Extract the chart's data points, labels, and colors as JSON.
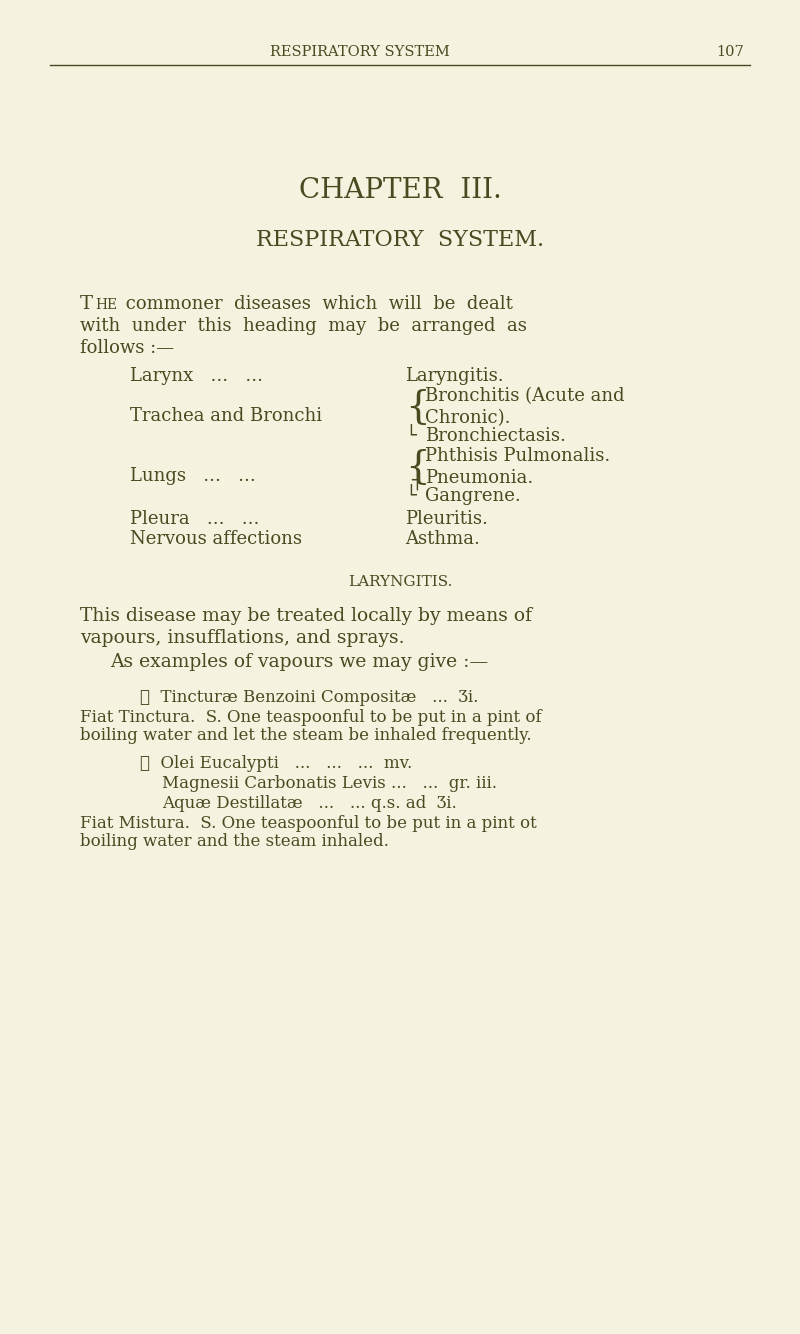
{
  "bg_color": "#f5f2e0",
  "text_color": "#4a4a20",
  "header_text": "RESPIRATORY SYSTEM",
  "header_page": "107",
  "chapter_title": "CHAPTER  III.",
  "chapter_subtitle": "RESPIRATORY  SYSTEM.",
  "laryngitis_header": "LARYNGITIS.",
  "para1_line1": "This disease may be treated locally by means of",
  "para1_line2": "vapours, insufflations, and sprays.",
  "para2": "As examples of vapours we may give :—",
  "rx1_line1": "℞  Tincturæ Benzoini Compositæ   ...  Ʒi.",
  "rx1_line2": "Fiat Tinctura.  S. One teaspoonful to be put in a pint of",
  "rx1_line3": "boiling water and let the steam be inhaled frequently.",
  "rx2_line1": "℞  Olei Eucalypti   ...   ...   ...  mv.",
  "rx2_line2": "Magnesii Carbonatis Levis ...   ...  gr. iii.",
  "rx2_line3": "Aquæ Destillatæ   ...   ... q.s. ad  Ʒi.",
  "rx2_line4": "Fiat Mistura.  S. One teaspoonful to be put in a pint ot",
  "rx2_line5": "boiling water and the steam inhaled."
}
